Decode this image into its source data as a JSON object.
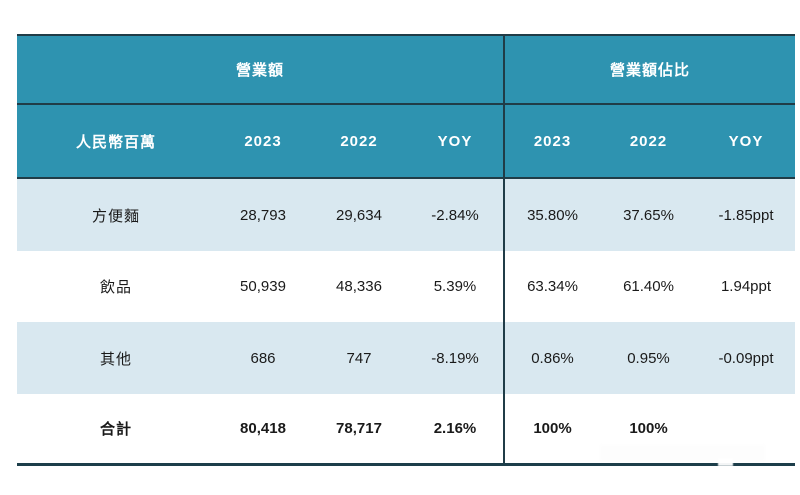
{
  "chart_data": {
    "type": "table",
    "title": "",
    "unit_label": "人民幣百萬",
    "column_groups": [
      {
        "label": "營業額",
        "span": 4
      },
      {
        "label": "營業額佔比",
        "span": 3
      }
    ],
    "column_headers": [
      "人民幣百萬",
      "2023",
      "2022",
      "YOY",
      "2023",
      "2022",
      "YOY"
    ],
    "rows": [
      {
        "cells": [
          "方便麵",
          "28,793",
          "29,634",
          "-2.84%",
          "35.80%",
          "37.65%",
          "-1.85ppt"
        ]
      },
      {
        "cells": [
          "飲品",
          "50,939",
          "48,336",
          "5.39%",
          "63.34%",
          "61.40%",
          "1.94ppt"
        ]
      },
      {
        "cells": [
          "其他",
          "686",
          "747",
          "-8.19%",
          "0.86%",
          "0.95%",
          "-0.09ppt"
        ]
      },
      {
        "cells": [
          "合計",
          "80,418",
          "78,717",
          "2.16%",
          "100%",
          "100%",
          ""
        ]
      }
    ]
  },
  "colors": {
    "header_bg": "#2e93b0",
    "row_alt_bg": "#d9e8f0",
    "row_bg": "#ffffff",
    "border_dark": "#203c47",
    "header_text": "#ffffff",
    "body_text": "#1a1a1a"
  }
}
